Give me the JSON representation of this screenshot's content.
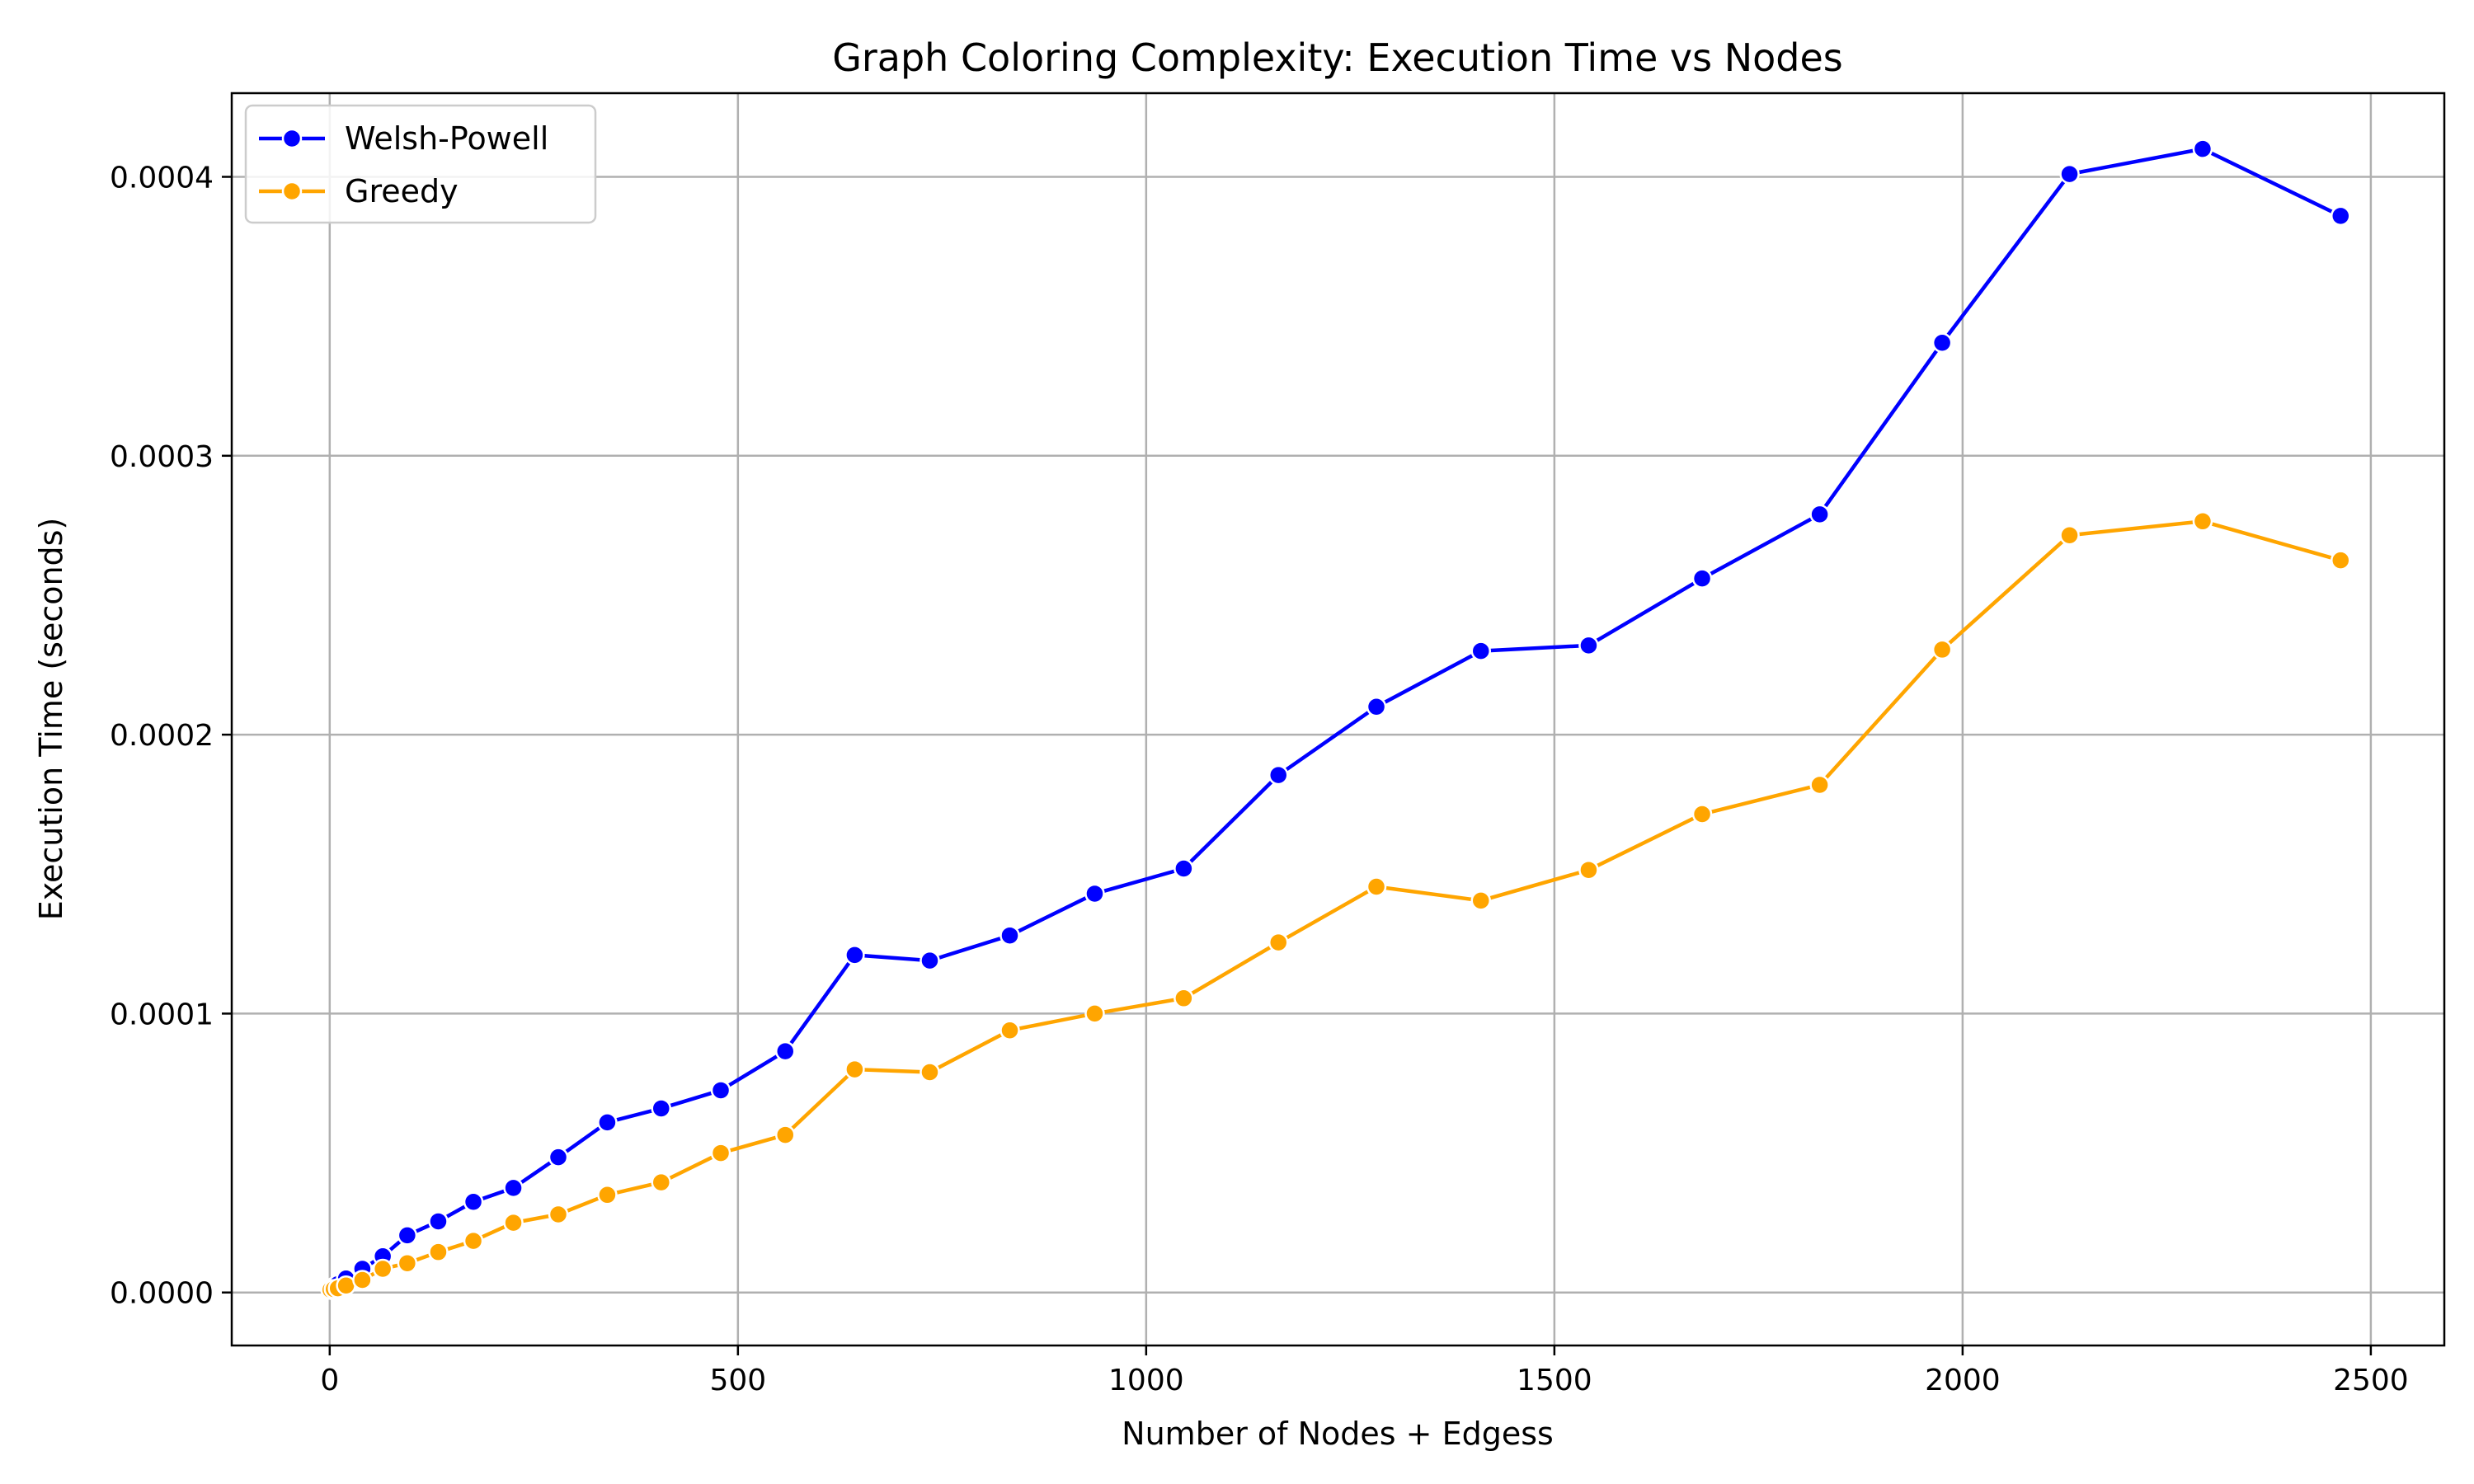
{
  "chart_data": {
    "type": "line",
    "title": "Graph Coloring Complexity: Execution Time vs Nodes",
    "xlabel": "Number of Nodes + Edgess",
    "ylabel": "Execution Time (seconds)",
    "xlim": [
      -120,
      2590
    ],
    "ylim": [
      -1.9e-05,
      0.00043
    ],
    "xticks": [
      0,
      500,
      1000,
      1500,
      2000,
      2500
    ],
    "xtick_labels": [
      "0",
      "500",
      "1000",
      "1500",
      "2000",
      "2500"
    ],
    "yticks": [
      0.0,
      0.0001,
      0.0002,
      0.0003,
      0.0004
    ],
    "ytick_labels": [
      "0.0000",
      "0.0001",
      "0.0002",
      "0.0003",
      "0.0004"
    ],
    "grid": true,
    "legend_position": "top-left",
    "series": [
      {
        "name": "Welsh-Powell",
        "color": "#0000ff",
        "marker": "circle",
        "x": [
          1,
          5,
          10,
          20,
          40,
          65,
          95,
          133,
          176,
          225,
          280,
          340,
          406,
          479,
          558,
          643,
          735,
          833,
          937,
          1046,
          1162,
          1282,
          1410,
          1542,
          1681,
          1825,
          1975,
          2131,
          2294,
          2463
        ],
        "y": [
          1e-06,
          2e-06,
          3e-06,
          5e-06,
          8.5e-06,
          1.3e-05,
          2.05e-05,
          2.55e-05,
          3.25e-05,
          3.75e-05,
          4.85e-05,
          6.1e-05,
          6.6e-05,
          7.25e-05,
          8.65e-05,
          0.000121,
          0.000119,
          0.000128,
          0.000143,
          0.000152,
          0.0001855,
          0.00021,
          0.00023,
          0.000232,
          0.000256,
          0.000279,
          0.0003405,
          0.000401,
          0.00041,
          0.000386
        ]
      },
      {
        "name": "Greedy",
        "color": "#ffa500",
        "marker": "circle",
        "x": [
          1,
          5,
          10,
          20,
          40,
          65,
          95,
          133,
          176,
          225,
          280,
          340,
          406,
          479,
          558,
          643,
          735,
          833,
          937,
          1046,
          1162,
          1282,
          1410,
          1542,
          1681,
          1825,
          1975,
          2131,
          2294,
          2463
        ],
        "y": [
          1e-06,
          1.2e-06,
          1.5e-06,
          2.5e-06,
          4.5e-06,
          8.5e-06,
          1.05e-05,
          1.45e-05,
          1.85e-05,
          2.5e-05,
          2.8e-05,
          3.5e-05,
          3.95e-05,
          5e-05,
          5.65e-05,
          8e-05,
          7.9e-05,
          9.4e-05,
          0.0001,
          0.0001055,
          0.0001255,
          0.0001455,
          0.0001405,
          0.0001515,
          0.0001715,
          0.000182,
          0.0002305,
          0.0002715,
          0.0002765,
          0.0002625
        ]
      }
    ]
  }
}
